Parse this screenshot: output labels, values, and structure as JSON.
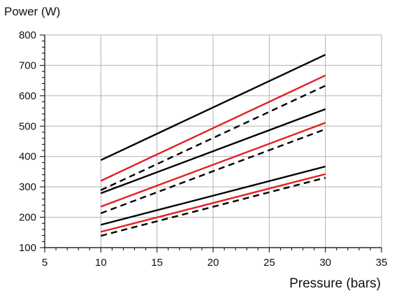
{
  "chart_data": {
    "type": "line",
    "title": "",
    "xlabel": "Pressure (bars)",
    "ylabel": "Power (W)",
    "xlim": [
      5,
      35
    ],
    "ylim": [
      100,
      800
    ],
    "xticks": [
      5,
      10,
      15,
      20,
      25,
      30,
      35
    ],
    "yticks": [
      100,
      200,
      300,
      400,
      500,
      600,
      700,
      800
    ],
    "grid": true,
    "legend": "none",
    "colors": {
      "black": "#000000",
      "red": "#e31e24",
      "grid": "#b0b0b0",
      "axis": "#000000"
    },
    "series": [
      {
        "color": "black",
        "style": "solid",
        "x": [
          10,
          30
        ],
        "y": [
          388,
          735
        ]
      },
      {
        "color": "red",
        "style": "solid",
        "x": [
          10,
          30
        ],
        "y": [
          320,
          667
        ]
      },
      {
        "color": "black",
        "style": "dashed",
        "x": [
          10,
          30
        ],
        "y": [
          289,
          633
        ]
      },
      {
        "color": "black",
        "style": "solid",
        "x": [
          10,
          30
        ],
        "y": [
          279,
          556
        ]
      },
      {
        "color": "red",
        "style": "solid",
        "x": [
          10,
          30
        ],
        "y": [
          235,
          511
        ]
      },
      {
        "color": "black",
        "style": "dashed",
        "x": [
          10,
          30
        ],
        "y": [
          213,
          490
        ]
      },
      {
        "color": "black",
        "style": "solid",
        "x": [
          10,
          30
        ],
        "y": [
          175,
          367
        ]
      },
      {
        "color": "red",
        "style": "solid",
        "x": [
          10,
          30
        ],
        "y": [
          152,
          342
        ]
      },
      {
        "color": "black",
        "style": "dashed",
        "x": [
          10,
          30
        ],
        "y": [
          139,
          330
        ]
      }
    ]
  }
}
